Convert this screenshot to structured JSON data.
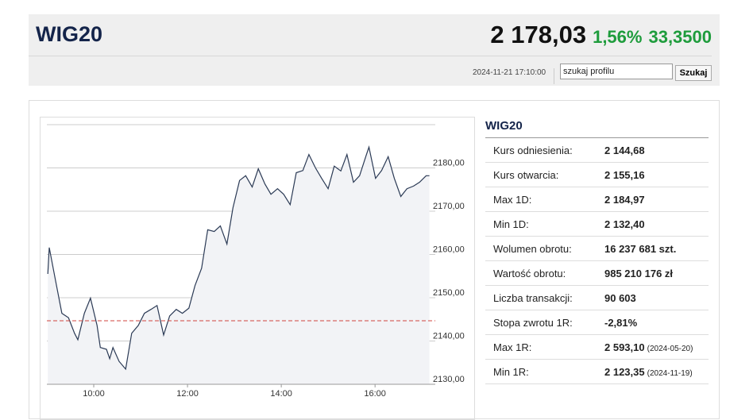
{
  "header": {
    "title": "WIG20",
    "price": "2 178,03",
    "change_pct": "1,56%",
    "change": "33,3500",
    "datetime": "2024-11-21 17:10:00",
    "search_placeholder": "szukaj profilu",
    "search_button": "Szukaj"
  },
  "chart_data": {
    "type": "line",
    "color": "#2b3a55",
    "area_color": "#f2f3f6",
    "grid": true,
    "reference_line": 2144.68,
    "reference_color": "#d0453f",
    "xlim": [
      9.0,
      17.2
    ],
    "ylim": [
      2130,
      2190
    ],
    "xticks": [
      {
        "value": 10,
        "label": "10:00"
      },
      {
        "value": 12,
        "label": "12:00"
      },
      {
        "value": 14,
        "label": "14:00"
      },
      {
        "value": 16,
        "label": "16:00"
      }
    ],
    "yticks": [
      {
        "value": 2130,
        "label": "2130,00"
      },
      {
        "value": 2140,
        "label": "2140,00"
      },
      {
        "value": 2150,
        "label": "2150,00"
      },
      {
        "value": 2160,
        "label": "2160,00"
      },
      {
        "value": 2170,
        "label": "2170,00"
      },
      {
        "value": 2180,
        "label": "2180,00"
      }
    ],
    "x": [
      9.02,
      9.05,
      9.19,
      9.32,
      9.46,
      9.59,
      9.66,
      9.8,
      9.93,
      10.07,
      10.14,
      10.27,
      10.34,
      10.41,
      10.54,
      10.68,
      10.81,
      10.95,
      11.08,
      11.22,
      11.35,
      11.49,
      11.62,
      11.76,
      11.89,
      12.03,
      12.16,
      12.3,
      12.43,
      12.57,
      12.7,
      12.84,
      12.97,
      13.11,
      13.24,
      13.38,
      13.51,
      13.65,
      13.78,
      13.92,
      14.05,
      14.19,
      14.32,
      14.46,
      14.59,
      14.73,
      14.86,
      15.0,
      15.13,
      15.27,
      15.4,
      15.54,
      15.67,
      15.81,
      15.87,
      16.01,
      16.14,
      16.28,
      16.41,
      16.55,
      16.68,
      16.82,
      16.95,
      17.09,
      17.16
    ],
    "values": [
      2155.5,
      2161.6,
      2153.7,
      2146.4,
      2145.4,
      2141.8,
      2140.3,
      2146.4,
      2149.9,
      2143.6,
      2138.5,
      2138.1,
      2135.9,
      2138.5,
      2135.3,
      2133.5,
      2141.8,
      2143.6,
      2146.4,
      2147.3,
      2148.2,
      2141.4,
      2145.8,
      2147.3,
      2146.4,
      2147.6,
      2152.8,
      2156.8,
      2165.7,
      2165.3,
      2166.6,
      2162.4,
      2170.8,
      2177.1,
      2178.2,
      2175.6,
      2179.8,
      2176.3,
      2173.9,
      2175.2,
      2173.9,
      2171.5,
      2178.9,
      2179.4,
      2183.1,
      2180.0,
      2177.6,
      2175.2,
      2180.4,
      2179.3,
      2183.1,
      2176.7,
      2178.2,
      2182.9,
      2184.8,
      2177.6,
      2179.4,
      2182.6,
      2177.6,
      2173.4,
      2175.2,
      2175.8,
      2176.7,
      2178.2,
      2178.2
    ]
  },
  "table": {
    "title": "WIG20",
    "rows": [
      {
        "label": "Kurs odniesienia:",
        "value": "2 144,68"
      },
      {
        "label": "Kurs otwarcia:",
        "value": "2 155,16"
      },
      {
        "label": "Max 1D:",
        "value": "2 184,97"
      },
      {
        "label": "Min 1D:",
        "value": "2 132,40"
      },
      {
        "label": "Wolumen obrotu:",
        "value": "16 237 681 szt."
      },
      {
        "label": "Wartość obrotu:",
        "value": "985 210 176 zł"
      },
      {
        "label": "Liczba transakcji:",
        "value": "90 603"
      },
      {
        "label": "Stopa zwrotu 1R:",
        "value": "-2,81%"
      },
      {
        "label": "Max 1R:",
        "value": "2 593,10",
        "date": "(2024-05-20)"
      },
      {
        "label": "Min 1R:",
        "value": "2 123,35",
        "date": "(2024-11-19)"
      }
    ]
  }
}
